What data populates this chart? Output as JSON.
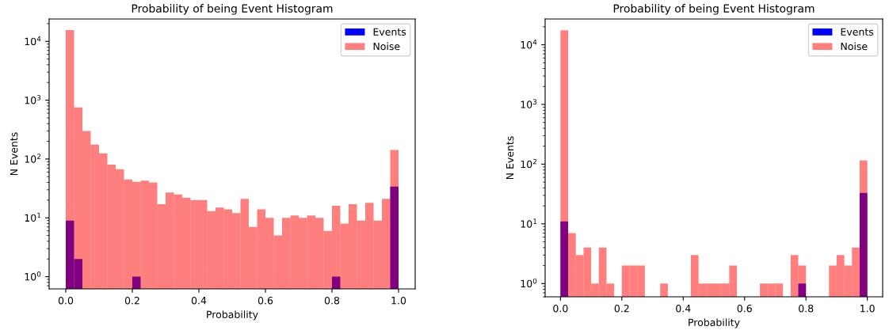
{
  "chart_data": [
    {
      "type": "histogram",
      "title": "Probability of being Event Histogram",
      "xlabel": "Probability",
      "ylabel": "N Events",
      "log": "y",
      "bins": [
        0,
        0.025,
        0.05,
        0.075,
        0.1,
        0.125,
        0.15,
        0.175,
        0.2,
        0.225,
        0.25,
        0.275,
        0.3,
        0.325,
        0.35,
        0.375,
        0.4,
        0.425,
        0.45,
        0.475,
        0.5,
        0.525,
        0.55,
        0.575,
        0.6,
        0.625,
        0.65,
        0.675,
        0.7,
        0.725,
        0.75,
        0.775,
        0.8,
        0.825,
        0.85,
        0.875,
        0.9,
        0.925,
        0.95,
        0.975,
        1.0
      ],
      "series": [
        {
          "name": "Events",
          "color": "#0000ff",
          "values": [
            9,
            2,
            null,
            null,
            null,
            null,
            null,
            null,
            1,
            null,
            null,
            null,
            null,
            null,
            null,
            null,
            null,
            null,
            null,
            null,
            null,
            null,
            null,
            null,
            null,
            null,
            null,
            null,
            null,
            null,
            null,
            null,
            1,
            null,
            null,
            null,
            null,
            null,
            null,
            34
          ]
        },
        {
          "name": "Noise",
          "color": "#ff0000",
          "values": [
            15500,
            750,
            300,
            175,
            125,
            80,
            67,
            45,
            41,
            43,
            40,
            17,
            27,
            25,
            22,
            20,
            20,
            13,
            15,
            14,
            12,
            21,
            7,
            14,
            10,
            5,
            10,
            11,
            10,
            11,
            10,
            6,
            16,
            8,
            17,
            9,
            18,
            9,
            21,
            142
          ]
        }
      ],
      "xlim": [
        -0.05,
        1.05
      ],
      "xticks": [
        {
          "value": 0,
          "label": "0.0"
        },
        {
          "value": 0.2,
          "label": "0.2"
        },
        {
          "value": 0.4,
          "label": "0.4"
        },
        {
          "value": 0.6,
          "label": "0.6"
        },
        {
          "value": 0.8,
          "label": "0.8"
        },
        {
          "value": 1,
          "label": "1.0"
        }
      ],
      "ylim": [
        0.62,
        24000
      ],
      "yticks": [
        {
          "value": 1,
          "label": "10$^{0}$"
        },
        {
          "value": 10,
          "label": "10$^{1}$"
        },
        {
          "value": 100,
          "label": "10$^{2}$"
        },
        {
          "value": 1000,
          "label": "10$^{3}$"
        },
        {
          "value": 10000,
          "label": "10$^{4}$"
        }
      ],
      "legend": "top right",
      "grid": false
    },
    {
      "type": "histogram",
      "title": "Probability of being Event Histogram",
      "xlabel": "Probability",
      "ylabel": "N Events",
      "log": "y",
      "bins": [
        0,
        0.025,
        0.05,
        0.075,
        0.1,
        0.125,
        0.15,
        0.175,
        0.2,
        0.225,
        0.25,
        0.275,
        0.3,
        0.325,
        0.35,
        0.375,
        0.4,
        0.425,
        0.45,
        0.475,
        0.5,
        0.525,
        0.55,
        0.575,
        0.6,
        0.625,
        0.65,
        0.675,
        0.7,
        0.725,
        0.75,
        0.775,
        0.8,
        0.825,
        0.85,
        0.875,
        0.9,
        0.925,
        0.95,
        0.975,
        1.0
      ],
      "series": [
        {
          "name": "Events",
          "color": "#0000ff",
          "values": [
            11,
            null,
            null,
            null,
            null,
            null,
            null,
            null,
            null,
            null,
            null,
            null,
            null,
            null,
            null,
            null,
            null,
            null,
            null,
            null,
            null,
            null,
            null,
            null,
            null,
            null,
            null,
            null,
            null,
            null,
            null,
            1,
            null,
            null,
            null,
            null,
            null,
            null,
            null,
            33
          ]
        },
        {
          "name": "Noise",
          "color": "#ff0000",
          "values": [
            17500,
            7,
            3,
            4,
            1,
            4,
            1,
            null,
            2,
            2,
            2,
            null,
            null,
            1,
            null,
            null,
            null,
            3,
            1,
            1,
            1,
            1,
            2,
            null,
            null,
            null,
            1,
            1,
            1,
            null,
            3,
            2,
            null,
            null,
            null,
            2,
            3,
            2,
            4,
            115
          ]
        }
      ],
      "xlim": [
        -0.05,
        1.05
      ],
      "xticks": [
        {
          "value": 0,
          "label": "0.0"
        },
        {
          "value": 0.2,
          "label": "0.2"
        },
        {
          "value": 0.4,
          "label": "0.4"
        },
        {
          "value": 0.6,
          "label": "0.6"
        },
        {
          "value": 0.8,
          "label": "0.8"
        },
        {
          "value": 1,
          "label": "1.0"
        }
      ],
      "ylim": [
        0.6,
        27000
      ],
      "yticks": [
        {
          "value": 1,
          "label": "10$^{0}$"
        },
        {
          "value": 10,
          "label": "10$^{1}$"
        },
        {
          "value": 100,
          "label": "10$^{2}$"
        },
        {
          "value": 1000,
          "label": "10$^{3}$"
        },
        {
          "value": 10000,
          "label": "10$^{4}$"
        }
      ],
      "legend": "top right",
      "grid": false
    }
  ]
}
